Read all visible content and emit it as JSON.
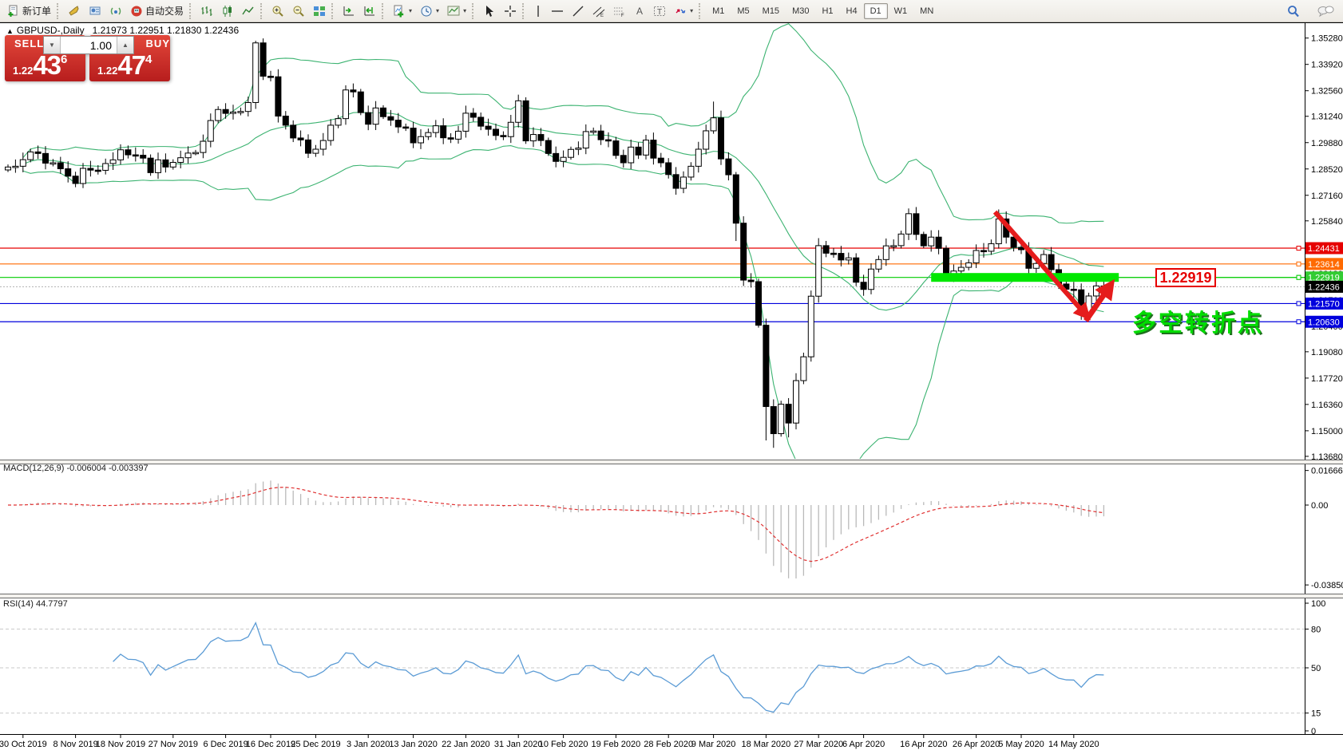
{
  "toolbar": {
    "new_order_label": "新订单",
    "auto_trading_label": "自动交易",
    "caret": "▾",
    "timeframes": [
      "M1",
      "M5",
      "M15",
      "M30",
      "H1",
      "H4",
      "D1",
      "W1",
      "MN"
    ],
    "active_timeframe": "D1",
    "icon_names": [
      "new-order-icon",
      "horn-icon",
      "market-watch-icon",
      "signal-icon",
      "autotrading-icon",
      "bar-chart-icon",
      "candle-chart-icon",
      "line-chart-icon",
      "zoom-in-icon",
      "zoom-out-icon",
      "tile-windows-icon",
      "shift-end-icon",
      "auto-scroll-icon",
      "indicators-icon",
      "periods-icon",
      "templates-icon",
      "cursor-icon",
      "crosshair-icon",
      "vline-icon",
      "hline-icon",
      "trendline-icon",
      "channel-icon",
      "fibo-icon",
      "text-icon",
      "label-icon",
      "shapes-icon",
      "search-icon",
      "chat-icon"
    ]
  },
  "chart": {
    "title": {
      "collapse_arrow": "▲",
      "symbol_period": "GBPUSD-,Daily",
      "ohlc": "1.21973 1.22951 1.21830 1.22436"
    },
    "one_click": {
      "sell_label": "SELL",
      "buy_label": "BUY",
      "volume": "1.00",
      "spinner_down": "▼",
      "spinner_up": "▲",
      "bid_prefix": "1.22",
      "bid_big": "43",
      "bid_sup": "6",
      "ask_prefix": "1.22",
      "ask_big": "47",
      "ask_sup": "4"
    },
    "colors": {
      "bollinger": "#3CB371",
      "candle_up": "#ffffff",
      "candle_down": "#000000",
      "macd_hist": "#b9b9b9",
      "macd_signal": "#e03030",
      "rsi_line": "#5b9bd5",
      "level_red": "#e60000",
      "level_orange": "#ff6a00",
      "level_green": "#00cc00",
      "level_blue": "#0000dd",
      "current_gray": "#b0b0b0",
      "highlight_green": "#00e800",
      "arrow_red": "#e51c1c",
      "sellbuy_red": "#c62222"
    },
    "price_axis_ticks": [
      "1.35280",
      "1.33920",
      "1.32560",
      "1.31240",
      "1.29880",
      "1.28520",
      "1.27160",
      "1.25840",
      "1.24480",
      "1.23120",
      "1.21760",
      "1.20400",
      "1.19080",
      "1.17720",
      "1.16360",
      "1.15000",
      "1.13680"
    ],
    "levels": [
      {
        "price": 1.24431,
        "label": "1.24431",
        "color": "#e60000"
      },
      {
        "price": 1.23614,
        "label": "1.23614",
        "color": "#ff6a00"
      },
      {
        "price": 1.22919,
        "label": "1.22919",
        "color": "#00cc00"
      },
      {
        "price": 1.2157,
        "label": "1.21570",
        "color": "#0000dd"
      },
      {
        "price": 1.2063,
        "label": "1.20630",
        "color": "#0000dd"
      }
    ],
    "current_price": {
      "price": 1.22436,
      "label": "1.22436"
    },
    "annotations": {
      "price_callout_text": "1.22919",
      "cn_note_text": "多空转折点",
      "highlight_bar": {
        "from_idx": 123,
        "to_idx": 148,
        "price": 1.22919
      },
      "arrow_down": {
        "from": [
          131.5,
          1.263
        ],
        "to": [
          143.8,
          1.209
        ]
      },
      "arrow_up": {
        "from": [
          143.6,
          1.2068
        ],
        "to": [
          147.0,
          1.2258
        ]
      }
    }
  },
  "macd_pane": {
    "label": "MACD(12,26,9) -0.006004 -0.003397",
    "ticks": [
      "0.016667",
      "0.00",
      "-0.038504"
    ],
    "tick_values": [
      0.016667,
      0,
      -0.038504
    ]
  },
  "rsi_pane": {
    "label": "RSI(14) 44.7797",
    "ticks": [
      "100",
      "80",
      "50",
      "15",
      "0"
    ],
    "tick_values": [
      100,
      80,
      50,
      15,
      0
    ],
    "dashed_levels": [
      80,
      50,
      15
    ]
  },
  "chart_data": {
    "type": "candlestick",
    "symbol": "GBPUSD",
    "timeframe": "Daily",
    "price_range_visible": [
      1.1368,
      1.3528
    ],
    "closes": [
      1.2862,
      1.2866,
      1.29,
      1.294,
      1.2932,
      1.2882,
      1.2884,
      1.2853,
      1.2815,
      1.2777,
      1.2855,
      1.2846,
      1.2845,
      1.288,
      1.2899,
      1.2951,
      1.2925,
      1.2923,
      1.2908,
      1.2833,
      1.2899,
      1.2862,
      1.2886,
      1.291,
      1.2934,
      1.2937,
      1.2995,
      1.3102,
      1.3159,
      1.3139,
      1.3146,
      1.3149,
      1.3195,
      1.3503,
      1.3331,
      1.3328,
      1.3125,
      1.3078,
      1.3012,
      1.3002,
      1.2933,
      1.2954,
      1.2999,
      1.3078,
      1.3112,
      1.326,
      1.325,
      1.3143,
      1.3083,
      1.3167,
      1.3122,
      1.3104,
      1.3069,
      1.3063,
      1.2987,
      1.3019,
      1.304,
      1.3075,
      1.3013,
      1.3006,
      1.3047,
      1.314,
      1.3119,
      1.3073,
      1.3057,
      1.3025,
      1.3019,
      1.3093,
      1.3204,
      1.2997,
      1.303,
      1.2999,
      1.2932,
      1.2891,
      1.2912,
      1.2953,
      1.296,
      1.3045,
      1.3048,
      1.3003,
      1.2997,
      1.2922,
      1.2884,
      1.2965,
      1.2924,
      1.3001,
      1.2908,
      1.2884,
      1.2823,
      1.2752,
      1.281,
      1.2866,
      1.2954,
      1.3049,
      1.3116,
      1.2904,
      1.2822,
      1.2572,
      1.2278,
      1.227,
      1.2045,
      1.1625,
      1.1485,
      1.1637,
      1.154,
      1.1759,
      1.1882,
      1.2195,
      1.2456,
      1.2417,
      1.2416,
      1.2382,
      1.2393,
      1.2267,
      1.223,
      1.2335,
      1.2384,
      1.2455,
      1.2456,
      1.2516,
      1.2621,
      1.2514,
      1.2455,
      1.25,
      1.2442,
      1.2297,
      1.2325,
      1.2344,
      1.2367,
      1.2431,
      1.2427,
      1.2466,
      1.2594,
      1.25,
      1.2447,
      1.2435,
      1.2339,
      1.2364,
      1.241,
      1.2332,
      1.2258,
      1.2231,
      1.2228,
      1.2103,
      1.2196,
      1.2248,
      1.22436
    ],
    "wick_overrides": {
      "33": {
        "h": 1.3514
      },
      "45": {
        "h": 1.3284
      },
      "94": {
        "h": 1.32
      },
      "97": {
        "l": 1.248
      },
      "101": {
        "l": 1.145
      },
      "102": {
        "l": 1.1412
      },
      "104": {
        "l": 1.1466
      },
      "120": {
        "h": 1.2648
      },
      "132": {
        "h": 1.2643
      },
      "142": {
        "l": 1.216
      },
      "143": {
        "l": 1.2073
      }
    },
    "date_labels": [
      [
        "30 Oct 2019",
        2
      ],
      [
        "8 Nov 2019",
        9
      ],
      [
        "18 Nov 2019",
        15
      ],
      [
        "27 Nov 2019",
        22
      ],
      [
        "6 Dec 2019",
        29
      ],
      [
        "16 Dec 2019",
        35
      ],
      [
        "25 Dec 2019",
        41
      ],
      [
        "3 Jan 2020",
        48
      ],
      [
        "13 Jan 2020",
        54
      ],
      [
        "22 Jan 2020",
        61
      ],
      [
        "31 Jan 2020",
        68
      ],
      [
        "10 Feb 2020",
        74
      ],
      [
        "19 Feb 2020",
        81
      ],
      [
        "28 Feb 2020",
        88
      ],
      [
        "9 Mar 2020",
        94
      ],
      [
        "18 Mar 2020",
        101
      ],
      [
        "27 Mar 2020",
        108
      ],
      [
        "6 Apr 2020",
        114
      ],
      [
        "16 Apr 2020",
        122
      ],
      [
        "26 Apr 2020",
        129
      ],
      [
        "5 May 2020",
        135
      ],
      [
        "14 May 2020",
        142
      ]
    ],
    "indicators": {
      "bollinger": {
        "period": 20,
        "deviation": 2
      },
      "macd": {
        "fast": 12,
        "slow": 26,
        "signal": 9,
        "value": -0.006004,
        "signal_value": -0.003397
      },
      "rsi": {
        "period": 14,
        "value": 44.7797
      }
    }
  }
}
